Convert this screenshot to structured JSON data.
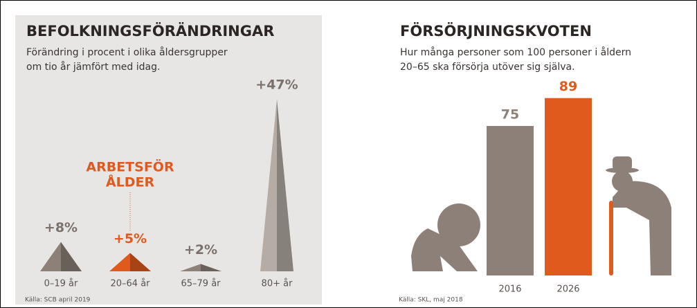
{
  "chart_data": [
    {
      "type": "pyramid",
      "title": "BEFOLKNINGSFÖRÄNDRINGAR",
      "subtitle": [
        "Förändring i procent i olika åldersgrupper",
        "om tio år jämfört med idag."
      ],
      "categories": [
        "0–19 år",
        "20–64 år",
        "65–79 år",
        "80+ år"
      ],
      "values": [
        8,
        5,
        2,
        47
      ],
      "value_labels": [
        "+8%",
        "+5%",
        "+2%",
        "+47%"
      ],
      "colors": [
        "#8c8079",
        "#e05a1e",
        "#8c8079",
        "#b5aca6"
      ],
      "annotation": [
        "ARBETSFÖR",
        "ÅLDER"
      ],
      "annotation_color": "#e05a1e",
      "source": "Källa: SCB april 2019"
    },
    {
      "type": "bar",
      "title": "FÖRSÖRJNINGSKVOTEN",
      "subtitle": [
        "Hur många personer som 100 personer i åldern",
        "20–65 ska försörja utöver sig själva."
      ],
      "categories": [
        "2016",
        "2026"
      ],
      "values": [
        75,
        89
      ],
      "colors": [
        "#8c8079",
        "#e05a1e"
      ],
      "source": "Källa: SKL, maj 2018"
    }
  ]
}
